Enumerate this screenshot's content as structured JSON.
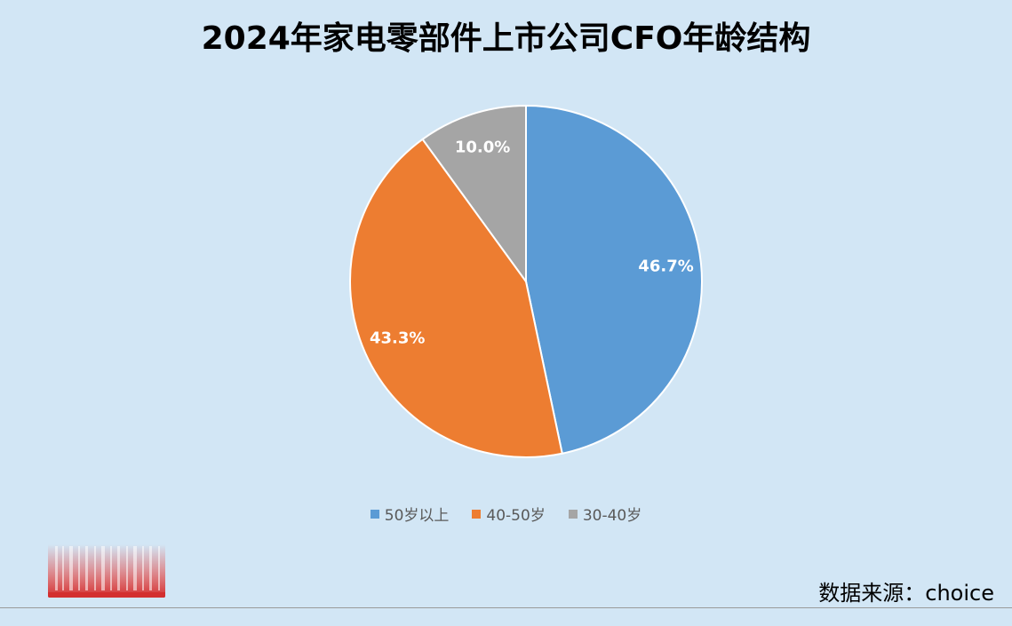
{
  "colors": {
    "background": "#d2e6f5",
    "slice_border": "#ffffff",
    "logo_red": "#e53935"
  },
  "legend_placement": "bottom",
  "source_note": "数据来源：choice",
  "chart_data": {
    "type": "pie",
    "title": "2024年家电零部件上市公司CFO年龄结构",
    "labels": [
      "50岁以上",
      "40-50岁",
      "30-40岁"
    ],
    "values": [
      46.7,
      43.3,
      10.0
    ],
    "data_labels": [
      "46.7%",
      "43.3%",
      "10.0%"
    ],
    "colors": [
      "#5b9bd5",
      "#ed7d31",
      "#a5a5a5"
    ],
    "start_angle": "12 o'clock, clockwise",
    "legend": "bottom"
  }
}
